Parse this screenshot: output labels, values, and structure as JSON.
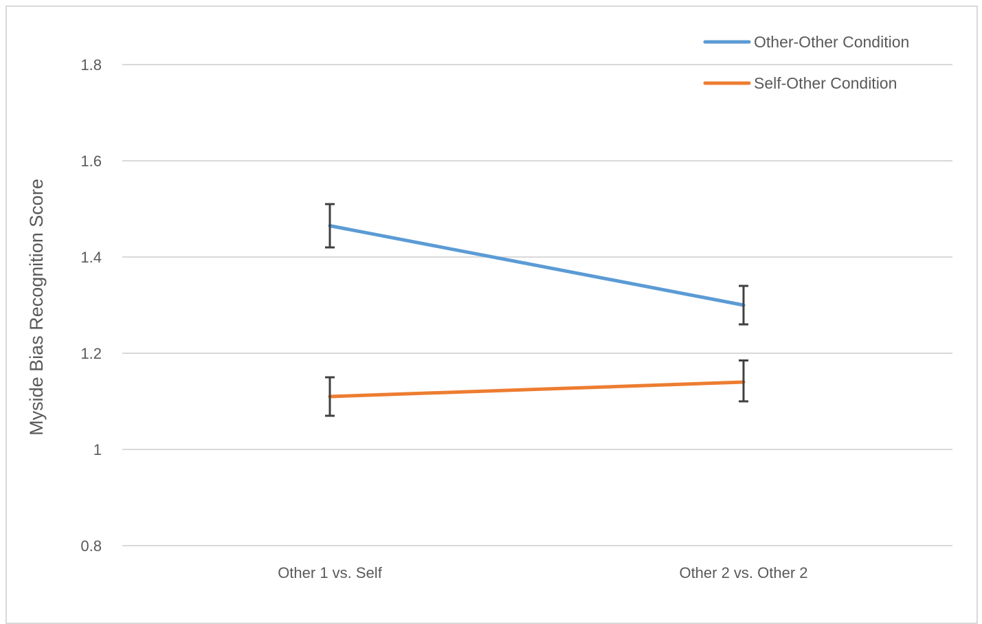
{
  "chart_data": {
    "type": "line",
    "title": "",
    "xlabel": "",
    "ylabel": "Myside Bias Recognition Score",
    "categories": [
      "Other 1 vs. Self",
      "Other 2 vs. Other 2"
    ],
    "ylim": [
      0.8,
      1.8
    ],
    "yticks": [
      "0.8",
      "1",
      "1.2",
      "1.4",
      "1.6",
      "1.8"
    ],
    "grid": true,
    "legend_position": "top-right",
    "series": [
      {
        "name": "Other-Other Condition",
        "color": "#5b9bd5",
        "values": [
          1.465,
          1.3
        ],
        "error_low": [
          1.42,
          1.26
        ],
        "error_high": [
          1.51,
          1.34
        ]
      },
      {
        "name": "Self-Other Condition",
        "color": "#ed7d31",
        "values": [
          1.11,
          1.14
        ],
        "error_low": [
          1.07,
          1.1
        ],
        "error_high": [
          1.15,
          1.185
        ]
      }
    ],
    "error_bar_color": "#404040",
    "gridline_color": "#d9d9d9"
  }
}
